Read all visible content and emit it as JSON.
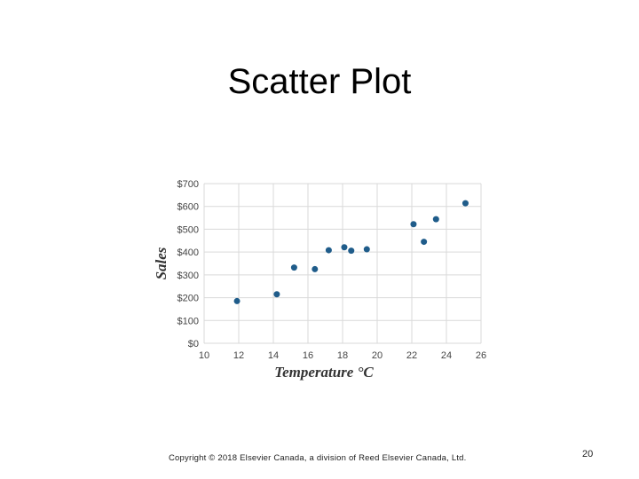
{
  "slide": {
    "title": "Scatter Plot",
    "copyright": "Copyright © 2018 Elsevier Canada, a division of Reed Elsevier Canada, Ltd.",
    "page_number": "20"
  },
  "colors": {
    "point": "#1f5c8a",
    "grid": "#d9d9d9"
  },
  "chart_data": {
    "type": "scatter",
    "title": "",
    "xlabel": "Temperature °C",
    "ylabel": "Sales",
    "xlim": [
      10,
      26
    ],
    "ylim": [
      0,
      700
    ],
    "x_ticks": [
      "10",
      "12",
      "14",
      "16",
      "18",
      "20",
      "22",
      "24",
      "26"
    ],
    "y_ticks": [
      "$0",
      "$100",
      "$200",
      "$300",
      "$400",
      "$500",
      "$600",
      "$700"
    ],
    "grid": true,
    "points": [
      {
        "x": 11.9,
        "y": 185
      },
      {
        "x": 14.2,
        "y": 215
      },
      {
        "x": 15.2,
        "y": 332
      },
      {
        "x": 16.4,
        "y": 325
      },
      {
        "x": 17.2,
        "y": 408
      },
      {
        "x": 18.1,
        "y": 421
      },
      {
        "x": 18.5,
        "y": 406
      },
      {
        "x": 19.4,
        "y": 412
      },
      {
        "x": 22.1,
        "y": 522
      },
      {
        "x": 22.7,
        "y": 445
      },
      {
        "x": 23.4,
        "y": 544
      },
      {
        "x": 25.1,
        "y": 614
      }
    ]
  }
}
